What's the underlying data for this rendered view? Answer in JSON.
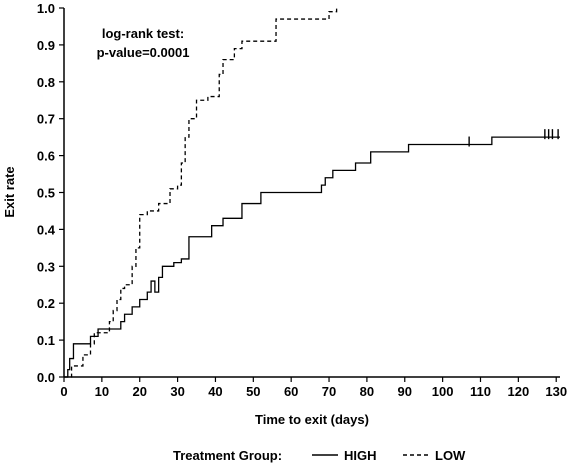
{
  "chart_data": {
    "type": "line",
    "step": true,
    "xlabel": "Time to exit (days)",
    "ylabel": "Exit rate",
    "xlim": [
      0,
      131
    ],
    "ylim": [
      0,
      1.0
    ],
    "x_ticks": [
      "0",
      "10",
      "20",
      "30",
      "40",
      "50",
      "60",
      "70",
      "80",
      "90",
      "100",
      "110",
      "120",
      "130"
    ],
    "y_ticks": [
      "0.0",
      "0.1",
      "0.2",
      "0.3",
      "0.4",
      "0.5",
      "0.6",
      "0.7",
      "0.8",
      "0.9",
      "1.0"
    ],
    "annotation": [
      "log-rank test:",
      "p-value=0.0001"
    ],
    "legend": {
      "title": "Treatment Group:",
      "position": "bottom"
    },
    "series": [
      {
        "name": "HIGH",
        "style": "solid",
        "color": "#000000",
        "points": [
          [
            0,
            0
          ],
          [
            1,
            0.02
          ],
          [
            1.5,
            0.05
          ],
          [
            2.5,
            0.09
          ],
          [
            7,
            0.11
          ],
          [
            9,
            0.13
          ],
          [
            14,
            0.13
          ],
          [
            15,
            0.15
          ],
          [
            16,
            0.17
          ],
          [
            18,
            0.19
          ],
          [
            20,
            0.21
          ],
          [
            22,
            0.23
          ],
          [
            23,
            0.26
          ],
          [
            24,
            0.23
          ],
          [
            25,
            0.27
          ],
          [
            26,
            0.3
          ],
          [
            28,
            0.3
          ],
          [
            29,
            0.31
          ],
          [
            31,
            0.32
          ],
          [
            33,
            0.38
          ],
          [
            39,
            0.41
          ],
          [
            42,
            0.43
          ],
          [
            47,
            0.47
          ],
          [
            52,
            0.5
          ],
          [
            68,
            0.52
          ],
          [
            69,
            0.54
          ],
          [
            71,
            0.56
          ],
          [
            77,
            0.58
          ],
          [
            81,
            0.61
          ],
          [
            91,
            0.63
          ],
          [
            113,
            0.65
          ],
          [
            131,
            0.65
          ]
        ],
        "censored": [
          [
            107,
            0.63
          ],
          [
            127,
            0.65
          ],
          [
            128,
            0.65
          ],
          [
            129,
            0.65
          ],
          [
            130.5,
            0.65
          ]
        ]
      },
      {
        "name": "LOW",
        "style": "dashed",
        "color": "#000000",
        "points": [
          [
            0,
            0
          ],
          [
            2,
            0.03
          ],
          [
            5,
            0.06
          ],
          [
            7,
            0.09
          ],
          [
            8,
            0.12
          ],
          [
            12,
            0.15
          ],
          [
            13,
            0.18
          ],
          [
            14,
            0.21
          ],
          [
            15,
            0.24
          ],
          [
            16,
            0.25
          ],
          [
            18,
            0.3
          ],
          [
            19,
            0.35
          ],
          [
            20,
            0.44
          ],
          [
            22,
            0.45
          ],
          [
            25,
            0.47
          ],
          [
            28,
            0.51
          ],
          [
            30,
            0.52
          ],
          [
            31,
            0.58
          ],
          [
            32,
            0.65
          ],
          [
            33,
            0.7
          ],
          [
            35,
            0.75
          ],
          [
            38,
            0.76
          ],
          [
            41,
            0.82
          ],
          [
            42,
            0.86
          ],
          [
            45,
            0.89
          ],
          [
            47,
            0.91
          ],
          [
            56,
            0.97
          ],
          [
            70,
            0.99
          ],
          [
            72,
            1.0
          ]
        ],
        "censored": []
      }
    ]
  }
}
